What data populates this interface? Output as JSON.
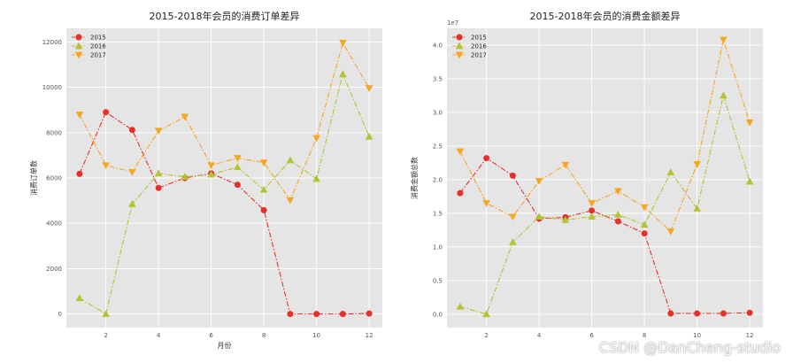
{
  "watermark": "CSDN @DanCheng-studio",
  "chart_data": [
    {
      "type": "line",
      "title": "2015-2018年会员的消费订单差异",
      "xlabel": "月份",
      "ylabel": "消费订单数",
      "x": [
        1,
        2,
        3,
        4,
        5,
        6,
        7,
        8,
        9,
        10,
        11,
        12
      ],
      "xticks": [
        2,
        4,
        6,
        8,
        10,
        12
      ],
      "xlim": [
        0.5,
        12.5
      ],
      "yticks": [
        0,
        2000,
        4000,
        6000,
        8000,
        10000,
        12000
      ],
      "ylim": [
        -600,
        12600
      ],
      "legend": "top-left",
      "grid": true,
      "series": [
        {
          "name": "2015",
          "color": "#e8302a",
          "marker": "circle",
          "values": [
            6180,
            8900,
            8120,
            5560,
            6000,
            6200,
            5700,
            4580,
            0,
            0,
            0,
            20
          ]
        },
        {
          "name": "2016",
          "color": "#b5c233",
          "marker": "triangle-up",
          "values": [
            700,
            0,
            4850,
            6200,
            6050,
            6150,
            6480,
            5480,
            6780,
            5960,
            10580,
            7820
          ]
        },
        {
          "name": "2017",
          "color": "#f5a623",
          "marker": "triangle-down",
          "values": [
            8800,
            6560,
            6260,
            8080,
            8700,
            6560,
            6880,
            6680,
            5020,
            7760,
            11960,
            9960
          ]
        }
      ]
    },
    {
      "type": "line",
      "title": "2015-2018年会员的消费金额差异",
      "xlabel": "",
      "ylabel": "消费金额总数",
      "offset_text": "1e7",
      "x": [
        1,
        2,
        3,
        4,
        5,
        6,
        7,
        8,
        9,
        10,
        11,
        12
      ],
      "xticks": [
        2,
        4,
        6,
        8,
        10,
        12
      ],
      "xlim": [
        0.5,
        12.5
      ],
      "yticks": [
        0.0,
        0.5,
        1.0,
        1.5,
        2.0,
        2.5,
        3.0,
        3.5,
        4.0
      ],
      "yticklabels": [
        "0.0",
        "0.5",
        "1.0",
        "1.5",
        "2.0",
        "2.5",
        "3.0",
        "3.5",
        "4.0"
      ],
      "ylim": [
        -0.2,
        4.25
      ],
      "legend": "top-left",
      "grid": true,
      "series": [
        {
          "name": "2015",
          "color": "#e8302a",
          "marker": "circle",
          "values": [
            1.8,
            2.32,
            2.06,
            1.42,
            1.44,
            1.54,
            1.38,
            1.2,
            0.01,
            0.01,
            0.01,
            0.02
          ]
        },
        {
          "name": "2016",
          "color": "#b5c233",
          "marker": "triangle-up",
          "values": [
            0.11,
            0.0,
            1.07,
            1.45,
            1.4,
            1.45,
            1.48,
            1.33,
            2.11,
            1.57,
            3.25,
            1.97
          ]
        },
        {
          "name": "2017",
          "color": "#f5a623",
          "marker": "triangle-down",
          "values": [
            2.42,
            1.65,
            1.45,
            1.98,
            2.22,
            1.65,
            1.83,
            1.59,
            1.23,
            2.23,
            4.08,
            2.85
          ]
        }
      ]
    }
  ]
}
